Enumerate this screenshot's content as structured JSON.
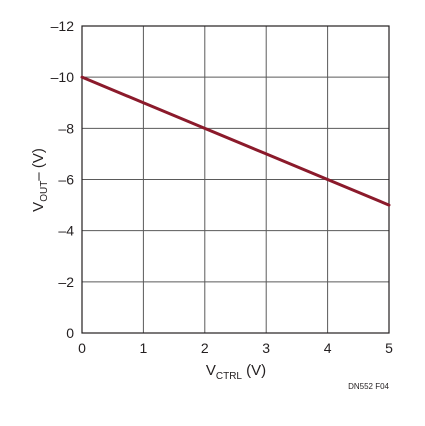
{
  "chart_data": {
    "type": "line",
    "x_axis": {
      "label_main": "V",
      "label_sub": "CTRL",
      "label_unit": " (V)",
      "lim": [
        0,
        5
      ],
      "ticks": [
        0,
        1,
        2,
        3,
        4,
        5
      ],
      "tick_labels": [
        "0",
        "1",
        "2",
        "3",
        "4",
        "5"
      ]
    },
    "y_axis": {
      "label_main": "V",
      "label_sub": "OUT",
      "label_unit": "– (V)",
      "lim": [
        0,
        -12
      ],
      "ticks": [
        0,
        -2,
        -4,
        -6,
        -8,
        -10,
        -12
      ],
      "tick_labels": [
        "0",
        "–2",
        "–4",
        "–6",
        "–8",
        "–10",
        "–12"
      ],
      "direction": "values increase downward from -12 at top to 0 at bottom"
    },
    "grid": true,
    "series": [
      {
        "color": "#8b1a2b",
        "x": [
          0,
          1,
          2,
          3,
          4,
          5
        ],
        "y": [
          -10,
          -9,
          -8,
          -7,
          -6,
          -5
        ]
      }
    ],
    "figure_id": "DN552 F04"
  }
}
